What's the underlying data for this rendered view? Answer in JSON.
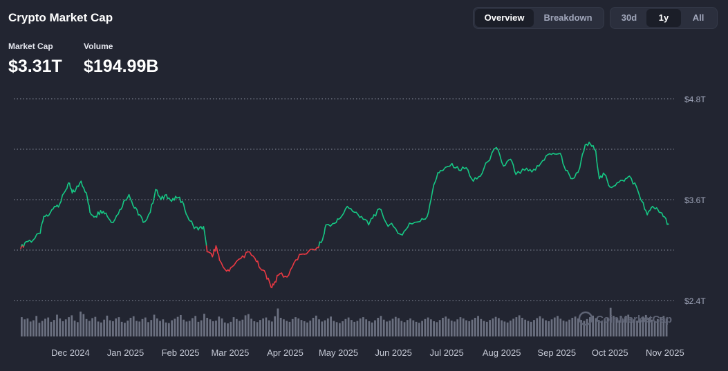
{
  "title": "Crypto Market Cap",
  "view_toggle": {
    "options": [
      "Overview",
      "Breakdown"
    ],
    "selected": "Overview"
  },
  "range_toggle": {
    "options": [
      "30d",
      "1y",
      "All"
    ],
    "selected": "1y"
  },
  "metrics": [
    {
      "label": "Market Cap",
      "value": "$3.31T"
    },
    {
      "label": "Volume",
      "value": "$194.99B"
    }
  ],
  "watermark": "CoinMarketCap",
  "colors": {
    "up": "#16c784",
    "down": "#ea3943",
    "background": "#222531",
    "volume": "#6b7080"
  },
  "chart_data": {
    "type": "line",
    "baseline": 3.05,
    "y_ticks": [
      "$2.4T",
      "$3.6T",
      "$4.8T"
    ],
    "y_tick_values": [
      2.4,
      3.6,
      4.8
    ],
    "ylim": [
      2.4,
      4.8
    ],
    "x_ticks": [
      "Dec 2024",
      "Jan 2025",
      "Feb 2025",
      "Mar 2025",
      "Apr 2025",
      "May 2025",
      "Jun 2025",
      "Jul 2025",
      "Aug 2025",
      "Sep 2025",
      "Oct 2025",
      "Nov 2025"
    ],
    "x_range": [
      "2024-11-19",
      "2025-11-19"
    ],
    "grid": true,
    "series": [
      {
        "values": [
          [
            "2024-11-19",
            3.02
          ],
          [
            "2024-11-22",
            3.1
          ],
          [
            "2024-11-26",
            3.12
          ],
          [
            "2024-11-30",
            3.2
          ],
          [
            "2024-12-02",
            3.4
          ],
          [
            "2024-12-05",
            3.42
          ],
          [
            "2024-12-08",
            3.52
          ],
          [
            "2024-12-11",
            3.55
          ],
          [
            "2024-12-14",
            3.7
          ],
          [
            "2024-12-16",
            3.8
          ],
          [
            "2024-12-18",
            3.68
          ],
          [
            "2024-12-20",
            3.72
          ],
          [
            "2024-12-23",
            3.82
          ],
          [
            "2024-12-26",
            3.68
          ],
          [
            "2024-12-28",
            3.45
          ],
          [
            "2024-12-31",
            3.4
          ],
          [
            "2025-01-03",
            3.47
          ],
          [
            "2025-01-06",
            3.44
          ],
          [
            "2025-01-09",
            3.33
          ],
          [
            "2025-01-13",
            3.43
          ],
          [
            "2025-01-16",
            3.58
          ],
          [
            "2025-01-19",
            3.66
          ],
          [
            "2025-01-22",
            3.5
          ],
          [
            "2025-01-25",
            3.42
          ],
          [
            "2025-01-27",
            3.33
          ],
          [
            "2025-01-31",
            3.45
          ],
          [
            "2025-02-03",
            3.72
          ],
          [
            "2025-02-06",
            3.6
          ],
          [
            "2025-02-09",
            3.66
          ],
          [
            "2025-02-12",
            3.58
          ],
          [
            "2025-02-15",
            3.62
          ],
          [
            "2025-02-18",
            3.58
          ],
          [
            "2025-02-21",
            3.4
          ],
          [
            "2025-02-24",
            3.3
          ],
          [
            "2025-02-27",
            3.24
          ],
          [
            "2025-03-02",
            3.28
          ],
          [
            "2025-03-04",
            2.98
          ],
          [
            "2025-03-07",
            2.92
          ],
          [
            "2025-03-09",
            3.05
          ],
          [
            "2025-03-11",
            2.88
          ],
          [
            "2025-03-15",
            2.75
          ],
          [
            "2025-03-18",
            2.8
          ],
          [
            "2025-03-23",
            2.9
          ],
          [
            "2025-03-27",
            2.98
          ],
          [
            "2025-03-31",
            2.9
          ],
          [
            "2025-04-03",
            2.78
          ],
          [
            "2025-04-06",
            2.72
          ],
          [
            "2025-04-09",
            2.56
          ],
          [
            "2025-04-11",
            2.62
          ],
          [
            "2025-04-14",
            2.72
          ],
          [
            "2025-04-18",
            2.68
          ],
          [
            "2025-04-22",
            2.85
          ],
          [
            "2025-04-26",
            2.95
          ],
          [
            "2025-04-30",
            2.98
          ],
          [
            "2025-05-05",
            3.03
          ],
          [
            "2025-05-08",
            3.12
          ],
          [
            "2025-05-10",
            3.3
          ],
          [
            "2025-05-15",
            3.32
          ],
          [
            "2025-05-18",
            3.38
          ],
          [
            "2025-05-22",
            3.52
          ],
          [
            "2025-05-26",
            3.45
          ],
          [
            "2025-05-30",
            3.4
          ],
          [
            "2025-06-03",
            3.3
          ],
          [
            "2025-06-06",
            3.42
          ],
          [
            "2025-06-10",
            3.48
          ],
          [
            "2025-06-13",
            3.32
          ],
          [
            "2025-06-17",
            3.28
          ],
          [
            "2025-06-22",
            3.18
          ],
          [
            "2025-06-26",
            3.32
          ],
          [
            "2025-07-02",
            3.34
          ],
          [
            "2025-07-06",
            3.4
          ],
          [
            "2025-07-09",
            3.7
          ],
          [
            "2025-07-12",
            3.92
          ],
          [
            "2025-07-15",
            3.95
          ],
          [
            "2025-07-20",
            4.03
          ],
          [
            "2025-07-24",
            3.95
          ],
          [
            "2025-07-28",
            3.98
          ],
          [
            "2025-08-01",
            3.82
          ],
          [
            "2025-08-05",
            3.88
          ],
          [
            "2025-08-09",
            4.05
          ],
          [
            "2025-08-14",
            4.22
          ],
          [
            "2025-08-18",
            4.0
          ],
          [
            "2025-08-22",
            4.08
          ],
          [
            "2025-08-25",
            3.9
          ],
          [
            "2025-08-30",
            3.95
          ],
          [
            "2025-09-03",
            3.93
          ],
          [
            "2025-09-07",
            4.0
          ],
          [
            "2025-09-11",
            4.12
          ],
          [
            "2025-09-15",
            4.15
          ],
          [
            "2025-09-19",
            4.15
          ],
          [
            "2025-09-22",
            3.95
          ],
          [
            "2025-09-26",
            3.85
          ],
          [
            "2025-09-30",
            3.98
          ],
          [
            "2025-10-03",
            4.25
          ],
          [
            "2025-10-06",
            4.26
          ],
          [
            "2025-10-09",
            4.18
          ],
          [
            "2025-10-11",
            3.85
          ],
          [
            "2025-10-14",
            3.9
          ],
          [
            "2025-10-17",
            3.75
          ],
          [
            "2025-10-21",
            3.8
          ],
          [
            "2025-10-25",
            3.82
          ],
          [
            "2025-10-28",
            3.88
          ],
          [
            "2025-11-01",
            3.75
          ],
          [
            "2025-11-04",
            3.58
          ],
          [
            "2025-11-07",
            3.42
          ],
          [
            "2025-11-10",
            3.52
          ],
          [
            "2025-11-13",
            3.48
          ],
          [
            "2025-11-16",
            3.4
          ],
          [
            "2025-11-19",
            3.31
          ]
        ]
      }
    ],
    "volume_values": [
      0.62,
      0.55,
      0.58,
      0.48,
      0.52,
      0.66,
      0.44,
      0.5,
      0.57,
      0.61,
      0.47,
      0.53,
      0.7,
      0.58,
      0.49,
      0.55,
      0.62,
      0.68,
      0.51,
      0.46,
      0.8,
      0.72,
      0.56,
      0.5,
      0.59,
      0.63,
      0.48,
      0.45,
      0.54,
      0.67,
      0.52,
      0.49,
      0.58,
      0.62,
      0.47,
      0.44,
      0.51,
      0.6,
      0.65,
      0.5,
      0.48,
      0.56,
      0.61,
      0.46,
      0.53,
      0.7,
      0.58,
      0.5,
      0.55,
      0.45,
      0.43,
      0.52,
      0.57,
      0.63,
      0.69,
      0.54,
      0.48,
      0.5,
      0.59,
      0.66,
      0.47,
      0.52,
      0.73,
      0.6,
      0.55,
      0.49,
      0.51,
      0.64,
      0.58,
      0.45,
      0.42,
      0.47,
      0.62,
      0.56,
      0.5,
      0.54,
      0.68,
      0.72,
      0.57,
      0.49,
      0.46,
      0.53,
      0.58,
      0.61,
      0.52,
      0.48,
      0.65,
      0.9,
      0.6,
      0.55,
      0.5,
      0.47,
      0.56,
      0.62,
      0.58,
      0.53,
      0.49,
      0.45,
      0.51,
      0.6,
      0.67,
      0.55,
      0.48,
      0.52,
      0.58,
      0.64,
      0.5,
      0.46,
      0.43,
      0.49,
      0.56,
      0.61,
      0.53,
      0.47,
      0.5,
      0.58,
      0.62,
      0.55,
      0.49,
      0.45,
      0.52,
      0.6,
      0.66,
      0.54,
      0.48,
      0.51,
      0.57,
      0.63,
      0.59,
      0.5,
      0.46,
      0.53,
      0.58,
      0.52,
      0.47,
      0.44,
      0.5,
      0.56,
      0.61,
      0.55,
      0.49,
      0.46,
      0.53,
      0.6,
      0.64,
      0.57,
      0.51,
      0.48,
      0.55,
      0.62,
      0.58,
      0.52,
      0.49,
      0.54,
      0.6,
      0.66,
      0.56,
      0.5,
      0.47,
      0.53,
      0.58,
      0.63,
      0.59,
      0.52,
      0.48,
      0.45,
      0.51,
      0.57,
      0.62,
      0.68,
      0.6,
      0.54,
      0.5,
      0.47,
      0.53,
      0.59,
      0.65,
      0.58,
      0.52,
      0.49,
      0.55,
      0.61,
      0.66,
      0.57,
      0.51,
      0.48,
      0.54,
      0.6,
      0.64,
      0.58,
      0.53,
      0.5,
      0.56,
      0.62,
      0.67,
      0.59,
      0.53,
      0.49,
      0.55,
      0.61,
      0.92,
      0.66,
      0.58,
      0.52,
      0.57,
      0.63,
      0.7,
      0.61,
      0.55,
      0.51,
      0.58,
      0.64,
      0.69,
      0.6,
      0.54,
      0.5,
      0.56,
      0.62,
      0.66,
      0.58
    ]
  }
}
